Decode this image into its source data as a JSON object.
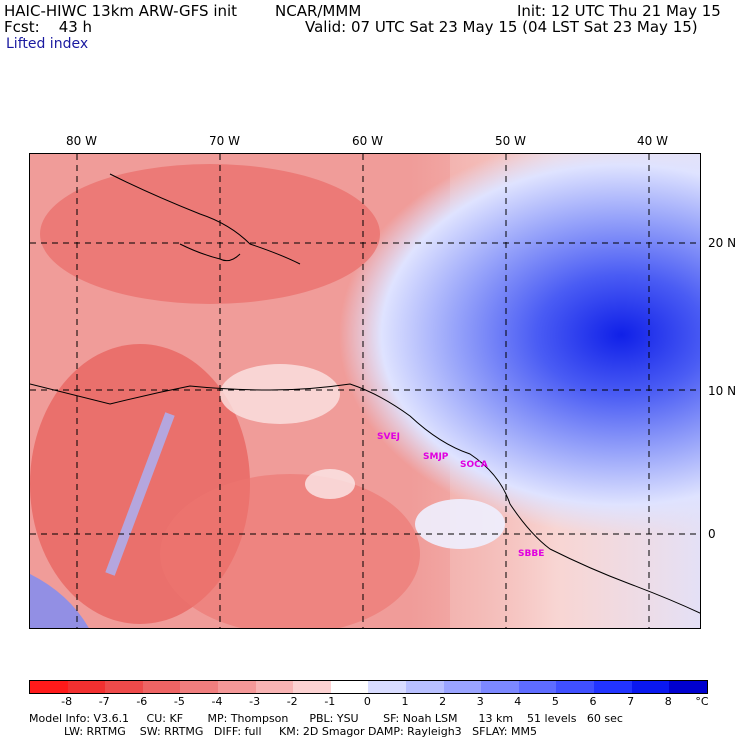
{
  "header": {
    "model": "HAIC-HIWC 13km ARW-GFS init",
    "org": "NCAR/MMM",
    "init": "Init: 12 UTC Thu 21 May 15",
    "fcst": "Fcst:    43 h",
    "valid": "Valid: 07 UTC Sat 23 May 15 (04 LST Sat 23 May 15)",
    "field": "Lifted index"
  },
  "map": {
    "lon_labels": [
      "80 W",
      "70 W",
      "60 W",
      "50 W",
      "40 W"
    ],
    "lat_labels": [
      "20 N",
      "10 N",
      "0"
    ],
    "cities": [
      "SVEJ",
      "SMJP",
      "SOCA",
      "SBBE"
    ]
  },
  "colorbar": {
    "unit": "°C",
    "labels": [
      "-8",
      "-7",
      "-6",
      "-5",
      "-4",
      "-3",
      "-2",
      "-1",
      "0",
      "1",
      "2",
      "3",
      "4",
      "5",
      "6",
      "7",
      "8"
    ],
    "colors": [
      "#ff1a1a",
      "#f23030",
      "#ee4a4a",
      "#ee6464",
      "#f07e7e",
      "#f49898",
      "#f8b4b4",
      "#fcd2d2",
      "#ffffff",
      "#d8dcff",
      "#b8c0ff",
      "#9aa4ff",
      "#7c88ff",
      "#5e6cff",
      "#4050ff",
      "#2234ff",
      "#0a18f0",
      "#0000d0"
    ]
  },
  "footer": {
    "line1": "Model Info: V3.6.1     CU: KF       MP: Thompson      PBL: YSU       SF: Noah LSM      13 km    51 levels   60 sec",
    "line2": "          LW: RRTMG    SW: RRTMG   DIFF: full     KM: 2D Smagor DAMP: Rayleigh3   SFLAY: MM5"
  }
}
